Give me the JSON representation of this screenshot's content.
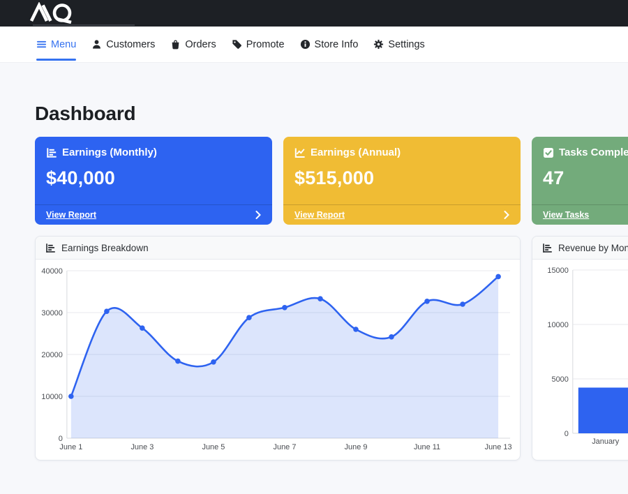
{
  "topbar": {
    "logo_text": "AQ"
  },
  "nav": {
    "items": [
      {
        "label": "Menu",
        "icon": "hamburger-icon",
        "active": true
      },
      {
        "label": "Customers",
        "icon": "person-icon",
        "active": false
      },
      {
        "label": "Orders",
        "icon": "shopping-bag-icon",
        "active": false
      },
      {
        "label": "Promote",
        "icon": "tag-icon",
        "active": false
      },
      {
        "label": "Store Info",
        "icon": "info-circle-icon",
        "active": false
      },
      {
        "label": "Settings",
        "icon": "gear-icon",
        "active": false
      }
    ],
    "active_color": "#3572f0"
  },
  "page": {
    "title": "Dashboard"
  },
  "cards": [
    {
      "title": "Earnings (Monthly)",
      "value": "$40,000",
      "link_label": "View Report",
      "color": "#2d63f1",
      "icon": "bar-chart-icon"
    },
    {
      "title": "Earnings (Annual)",
      "value": "$515,000",
      "link_label": "View Report",
      "color": "#f0bc34",
      "icon": "line-chart-icon"
    },
    {
      "title": "Tasks Completed",
      "value": "47",
      "link_label": "View Tasks",
      "color": "#73ab7b",
      "icon": "check-square-icon"
    }
  ],
  "chart_data": [
    {
      "type": "area",
      "title": "Earnings Breakdown",
      "x": [
        "June 1",
        "June 2",
        "June 3",
        "June 4",
        "June 5",
        "June 6",
        "June 7",
        "June 8",
        "June 9",
        "June 10",
        "June 11",
        "June 12",
        "June 13"
      ],
      "values": [
        10000,
        30300,
        26300,
        18400,
        18200,
        28800,
        31200,
        33300,
        26000,
        24200,
        32700,
        32000,
        38600
      ],
      "xticks_shown": [
        "June 1",
        "June 3",
        "June 5",
        "June 7",
        "June 9",
        "June 11",
        "June 13"
      ],
      "ylim": [
        0,
        40000
      ],
      "yticks": [
        0,
        10000,
        20000,
        30000,
        40000
      ],
      "grid": true,
      "legend": false,
      "line_color": "#2e63f0",
      "fill_color": "rgba(46,99,240,0.17)",
      "point_color": "#2e63f0"
    },
    {
      "type": "bar",
      "title": "Revenue by Month",
      "categories": [
        "January"
      ],
      "values": [
        4200
      ],
      "ylim": [
        0,
        15000
      ],
      "yticks": [
        0,
        5000,
        10000,
        15000
      ],
      "grid": true,
      "legend": false,
      "bar_color": "#2e63f0"
    }
  ]
}
